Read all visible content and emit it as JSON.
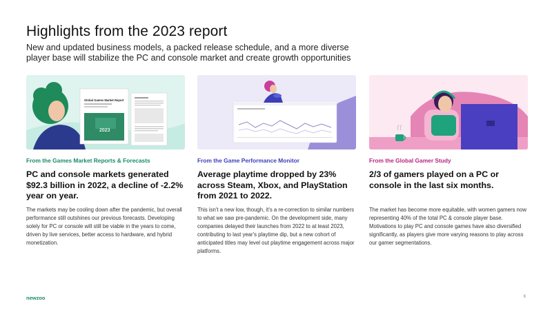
{
  "header": {
    "title": "Highlights from the 2023 report",
    "subtitle": "New and updated business models, a packed release schedule, and a more diverse player base will stabilize the PC and console market and create growth opportunities"
  },
  "cards": [
    {
      "image_caption_title": "Global Games Market Report",
      "image_year": "2023",
      "source": "From the Games Market Reports & Forecasts",
      "headline": "PC and console markets generated $92.3 billion in 2022, a decline of -2.2% year on year.",
      "body": "The markets may be cooling down after the pandemic, but overall performance still outshines our previous forecasts. Developing solely for PC or console will still be viable in the years to come, driven by live services, better access to hardware, and hybrid monetization."
    },
    {
      "source": "From the Game Performance Monitor",
      "headline": "Average playtime dropped by 23% across Steam, Xbox, and PlayStation from 2021 to 2022.",
      "body": "This isn't a new low, though, it's a re-correction to similar numbers to what we saw pre-pandemic. On the development side, many companies delayed their launches from 2022 to at least 2023, contributing to last year's playtime dip, but a new cohort of anticipated titles may level out playtime engagement across major platforms."
    },
    {
      "source": "From the Global Gamer Study",
      "headline": "2/3 of gamers played on a PC or console in the last six months.",
      "body": "The market has become more equitable, with women gamers now representing 40% of the total PC & console player base. Motivations to play PC and console games have also diversified significantly, as players give more varying reasons to play across our gamer segmentations."
    }
  ],
  "footer": {
    "logo": "newzoo",
    "page": "6"
  },
  "colors": {
    "green": "#1a8a6b",
    "indigo": "#3c3fb8",
    "magenta": "#b5267e",
    "mint_bg": "#dff3ef",
    "lavender_bg": "#eceaf8",
    "pink_bg": "#fce9f1"
  }
}
